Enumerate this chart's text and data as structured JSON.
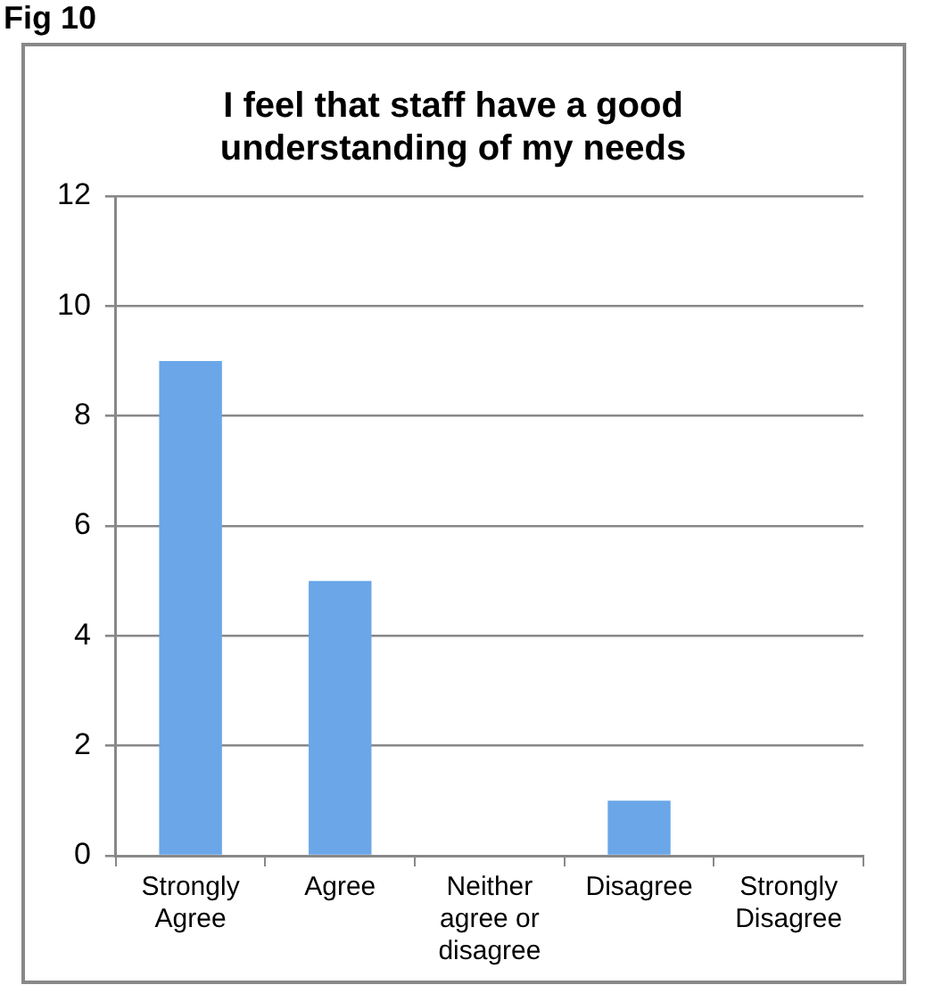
{
  "chart_data": {
    "type": "bar",
    "title": "I feel that staff have a good understanding of my needs",
    "categories": [
      "Strongly Agree",
      "Agree",
      "Neither agree or disagree",
      "Disagree",
      "Strongly Disagree"
    ],
    "values": [
      9,
      5,
      0,
      1,
      0
    ],
    "color": "#6aa6e8",
    "ylim": [
      0,
      12
    ],
    "yticks": [
      0,
      2,
      4,
      6,
      8,
      10,
      12
    ],
    "grid": "y",
    "legend": false,
    "annotations": [
      "Fig 10"
    ]
  }
}
